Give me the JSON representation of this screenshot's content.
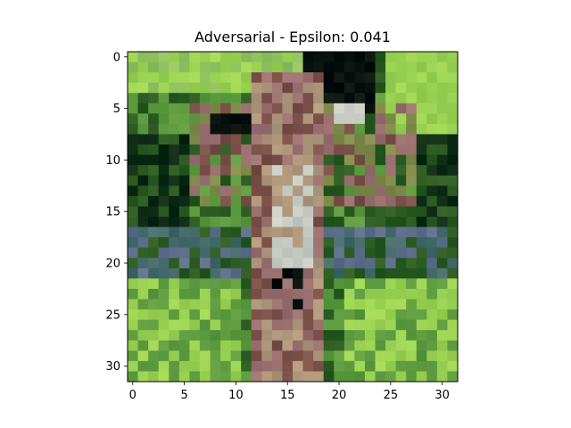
{
  "figure": {
    "title": "Adversarial - Epsilon: 0.041"
  },
  "image": {
    "grid_size": 32,
    "palette": {
      "light-green": "#8fc160",
      "yellow-green": "#9bd253",
      "mid-green": "#5d9a3f",
      "dark-green": "#2b5a22",
      "very-dark-green": "#0b2a14",
      "near-black": "#08110e",
      "dark-navy": "#1a1a2e",
      "brown": "#7a5048",
      "mauve": "#9a7070",
      "tan": "#b0987c",
      "pale-gray": "#c8ccc4",
      "blue-gray": "#5b6e8a",
      "teal-gray": "#446a6a",
      "olive": "#7f8a4a"
    }
  },
  "axes": {
    "x_ticks": [
      "0",
      "5",
      "10",
      "15",
      "20",
      "25",
      "30"
    ],
    "y_ticks": [
      "0",
      "5",
      "10",
      "15",
      "20",
      "25",
      "30"
    ]
  }
}
